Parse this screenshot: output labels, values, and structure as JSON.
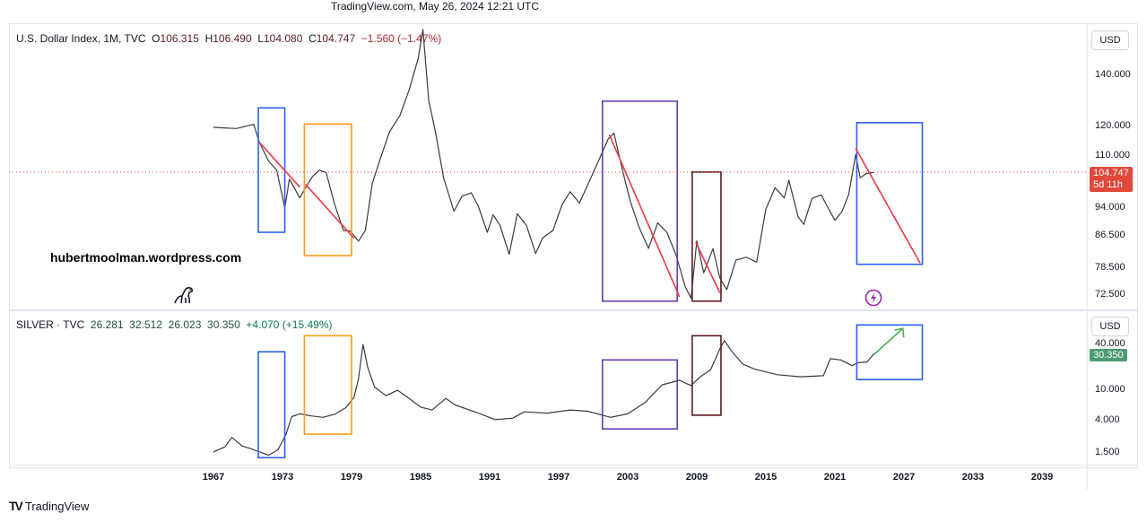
{
  "header": {
    "stamp": "TradingView.com, May 26, 2024 12:21 UTC"
  },
  "watermark": "hubertmoolman.wordpress.com",
  "footer": {
    "brand": "TradingView",
    "logo_mark": "TV"
  },
  "colors": {
    "dxy_line": "#3b3b3b",
    "silver_line": "#3b3b3b",
    "box_blue": "#2962ff",
    "box_orange": "#f89a1c",
    "box_purple": "#673ab7",
    "box_maroon": "#5d1a22",
    "trend_red": "#f23645",
    "trend_green": "#4caf50",
    "last_price_red": "#e0493b",
    "last_price_green": "#4b9b74"
  },
  "chart_data": [
    {
      "type": "line",
      "symbol": "U.S. Dollar Index, 1M, TVC",
      "title": "U.S. Dollar Index, 1M, TVC",
      "ohlc": {
        "open_label": "O",
        "open": "106.315",
        "high_label": "H",
        "high": "106.490",
        "low_label": "L",
        "low": "104.080",
        "close_label": "C",
        "close": "104.747",
        "change": "−1.560 (−1.47%)"
      },
      "currency": "USD",
      "scale": "log",
      "y_ticks": [
        "140.000",
        "120.000",
        "110.000",
        "94.000",
        "86.500",
        "78.500",
        "72.500"
      ],
      "y_tick_values": [
        140,
        120,
        110,
        94,
        86.5,
        78.5,
        72.5
      ],
      "last_price": "104.747",
      "countdown": "5d 11h",
      "x": [
        1967.0,
        1969.0,
        1970.5,
        1971.0,
        1971.8,
        1972.5,
        1973.2,
        1973.6,
        1974.5,
        1975.0,
        1975.6,
        1976.2,
        1976.8,
        1977.5,
        1978.3,
        1978.9,
        1979.6,
        1980.2,
        1980.8,
        1981.5,
        1982.3,
        1983.2,
        1984.0,
        1984.8,
        1985.2,
        1985.7,
        1986.3,
        1987.0,
        1987.9,
        1988.6,
        1989.4,
        1990.0,
        1990.8,
        1991.3,
        1991.9,
        1992.7,
        1993.4,
        1994.2,
        1995.0,
        1995.6,
        1996.5,
        1997.3,
        1998.0,
        1998.8,
        1999.6,
        2000.5,
        2001.3,
        2001.8,
        2002.5,
        2003.2,
        2004.0,
        2004.8,
        2005.6,
        2006.4,
        2007.2,
        2008.0,
        2008.5,
        2009.0,
        2009.6,
        2010.4,
        2011.0,
        2011.6,
        2012.4,
        2013.3,
        2014.2,
        2015.0,
        2015.8,
        2016.6,
        2017.0,
        2017.8,
        2018.3,
        2019.0,
        2019.8,
        2020.4,
        2021.0,
        2021.6,
        2022.2,
        2022.8,
        2023.2,
        2023.7,
        2024.4
      ],
      "values": [
        119.8,
        119.4,
        120.9,
        114.5,
        108.2,
        105.4,
        94.1,
        102.6,
        97.0,
        100.0,
        103.4,
        105.4,
        104.6,
        95.4,
        88.0,
        87.8,
        85.2,
        88.0,
        101.2,
        109.1,
        118.2,
        124.1,
        134.0,
        147.4,
        160.6,
        130.0,
        118.0,
        102.9,
        93.2,
        97.5,
        98.5,
        94.7,
        87.5,
        92.2,
        89.3,
        81.9,
        92.5,
        89.3,
        82.1,
        86.0,
        88.0,
        95.1,
        98.8,
        95.5,
        101.5,
        108.7,
        115.7,
        117.8,
        106.0,
        96.2,
        88.7,
        83.4,
        90.0,
        87.5,
        81.7,
        74.3,
        71.8,
        85.3,
        77.5,
        83.3,
        76.3,
        73.7,
        80.5,
        81.2,
        80.0,
        93.8,
        100.0,
        97.0,
        102.2,
        91.7,
        89.6,
        96.8,
        97.9,
        94.2,
        90.7,
        93.0,
        98.0,
        110.4,
        103.0,
        104.3,
        104.7
      ],
      "annotations": [
        {
          "type": "box",
          "color_key": "box_blue",
          "x0": 1970.9,
          "x1": 1973.2,
          "y0": 87.5,
          "y1": 127.0
        },
        {
          "type": "box",
          "color_key": "box_orange",
          "x0": 1974.9,
          "x1": 1979.0,
          "y0": 81.6,
          "y1": 121.0
        },
        {
          "type": "box",
          "color_key": "box_purple",
          "x0": 2000.8,
          "x1": 2007.3,
          "y0": 71.2,
          "y1": 129.6
        },
        {
          "type": "box",
          "color_key": "box_maroon",
          "x0": 2008.6,
          "x1": 2011.1,
          "y0": 71.2,
          "y1": 104.8
        },
        {
          "type": "box",
          "color_key": "box_blue",
          "x0": 2022.9,
          "x1": 2028.6,
          "y0": 79.5,
          "y1": 121.5
        },
        {
          "type": "trend",
          "color_key": "trend_red",
          "x0": 1971.0,
          "y0": 114.5,
          "x1": 1974.5,
          "y1": 100.2
        },
        {
          "type": "trend",
          "color_key": "trend_red",
          "x0": 1975.0,
          "y0": 101.0,
          "x1": 1979.2,
          "y1": 86.0
        },
        {
          "type": "trend",
          "color_key": "trend_red",
          "x0": 2001.4,
          "y0": 117.2,
          "x1": 2007.5,
          "y1": 72.1
        },
        {
          "type": "trend",
          "color_key": "trend_red",
          "x0": 2008.9,
          "y0": 85.0,
          "x1": 2011.0,
          "y1": 73.0
        },
        {
          "type": "trend",
          "color_key": "trend_red",
          "x0": 2022.8,
          "y0": 112.5,
          "x1": 2028.4,
          "y1": 79.8
        }
      ]
    },
    {
      "type": "line",
      "symbol": "SILVER · TVC",
      "title": "SILVER · TVC",
      "ohlc": {
        "open": "26.281",
        "high": "32.512",
        "low": "26.023",
        "close": "30.350",
        "change": "+4.070 (+15.49%)"
      },
      "currency": "USD",
      "scale": "log",
      "y_ticks": [
        "40.000",
        "10.000",
        "4.000",
        "1.500"
      ],
      "y_tick_values": [
        40,
        10,
        4,
        1.5
      ],
      "last_price": "30.350",
      "x": [
        1967.0,
        1968.0,
        1968.6,
        1969.5,
        1970.3,
        1971.0,
        1971.8,
        1972.6,
        1973.3,
        1973.8,
        1974.5,
        1975.5,
        1976.5,
        1977.5,
        1978.5,
        1979.2,
        1979.6,
        1980.0,
        1980.4,
        1981.0,
        1982.0,
        1983.0,
        1984.0,
        1985.0,
        1986.0,
        1987.2,
        1988.0,
        1990.0,
        1991.5,
        1993.0,
        1994.0,
        1996.0,
        1998.0,
        1999.5,
        2001.5,
        2003.0,
        2004.5,
        2006.0,
        2007.5,
        2008.5,
        2009.3,
        2010.2,
        2011.0,
        2011.4,
        2012.0,
        2013.0,
        2014.0,
        2016.0,
        2018.0,
        2020.0,
        2020.6,
        2021.5,
        2022.5,
        2023.0,
        2023.8,
        2024.4
      ],
      "values": [
        1.55,
        1.8,
        2.4,
        1.85,
        1.7,
        1.55,
        1.4,
        1.65,
        2.6,
        4.5,
        4.9,
        4.6,
        4.4,
        4.8,
        5.9,
        8.0,
        14.0,
        40.0,
        20.0,
        11.0,
        8.5,
        10.0,
        7.8,
        6.0,
        5.5,
        7.8,
        6.4,
        5.0,
        4.1,
        4.3,
        5.2,
        5.0,
        5.5,
        5.3,
        4.4,
        4.9,
        6.9,
        11.8,
        13.5,
        11.5,
        15.0,
        18.5,
        35.0,
        45.0,
        33.0,
        22.0,
        19.0,
        16.0,
        15.0,
        15.5,
        26.0,
        25.0,
        21.0,
        23.0,
        23.5,
        30.35
      ],
      "annotations": [
        {
          "type": "box",
          "color_key": "box_blue",
          "x0": 1970.9,
          "x1": 1973.2,
          "y0": 1.3,
          "y1": 32.0
        },
        {
          "type": "box",
          "color_key": "box_orange",
          "x0": 1974.9,
          "x1": 1979.0,
          "y0": 2.65,
          "y1": 52.0
        },
        {
          "type": "box",
          "color_key": "box_purple",
          "x0": 2000.8,
          "x1": 2007.3,
          "y0": 3.1,
          "y1": 25.0
        },
        {
          "type": "box",
          "color_key": "box_maroon",
          "x0": 2008.6,
          "x1": 2011.1,
          "y0": 4.7,
          "y1": 52.0
        },
        {
          "type": "box",
          "color_key": "box_blue",
          "x0": 2022.9,
          "x1": 2028.6,
          "y0": 13.8,
          "y1": 72.0
        },
        {
          "type": "trend",
          "color_key": "trend_green",
          "x0": 2024.4,
          "y0": 29.5,
          "x1": 2026.9,
          "y1": 65.0
        }
      ]
    }
  ],
  "time_axis": {
    "ticks": [
      "1967",
      "1973",
      "1979",
      "1985",
      "1991",
      "1997",
      "2003",
      "2009",
      "2015",
      "2021",
      "2027",
      "2033",
      "2039"
    ],
    "tick_years": [
      1967,
      1973,
      1979,
      1985,
      1991,
      1997,
      2003,
      2009,
      2015,
      2021,
      2027,
      2033,
      2039
    ]
  },
  "icons": {
    "dino": "dino-icon",
    "lightning": "lightning-icon",
    "tv_logo": "tradingview-logo-icon"
  }
}
